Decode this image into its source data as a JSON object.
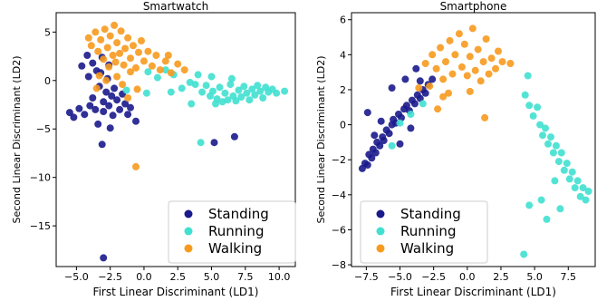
{
  "chart_data": [
    {
      "type": "scatter",
      "title": "Smartwatch",
      "xlabel": "First Linear Discriminant (LD1)",
      "ylabel": "Second Linear Discriminant (LD2)",
      "xlim": [
        -6.5,
        11.2
      ],
      "ylim": [
        -19.2,
        7.0
      ],
      "xticks": [
        -5.0,
        -2.5,
        0.0,
        2.5,
        5.0,
        7.5,
        10.0
      ],
      "xtick_labels": [
        "−5.0",
        "−2.5",
        "0.0",
        "2.5",
        "5.0",
        "7.5",
        "10.0"
      ],
      "yticks": [
        5,
        0,
        -5,
        -10,
        -15
      ],
      "ytick_labels": [
        "5",
        "0",
        "−5",
        "−10",
        "−15"
      ],
      "legend": "lower-right",
      "series": [
        {
          "name": "Standing",
          "color": "#1a1a8c",
          "points": [
            [
              -5.5,
              -3.3
            ],
            [
              -5.2,
              -3.8
            ],
            [
              -4.8,
              -2.9
            ],
            [
              -4.4,
              -3.5
            ],
            [
              -4.0,
              -2.6
            ],
            [
              -3.8,
              -1.8
            ],
            [
              -3.6,
              -3.0
            ],
            [
              -3.3,
              -0.6
            ],
            [
              -3.2,
              0.8
            ],
            [
              -3.0,
              -2.2
            ],
            [
              -3.0,
              -3.2
            ],
            [
              -2.8,
              -1.2
            ],
            [
              -2.7,
              0.2
            ],
            [
              -2.6,
              -2.6
            ],
            [
              -2.4,
              -1.6
            ],
            [
              -2.3,
              -3.6
            ],
            [
              -2.2,
              -0.8
            ],
            [
              -2.0,
              -2.0
            ],
            [
              -1.8,
              -3.0
            ],
            [
              -1.6,
              -1.4
            ],
            [
              -1.4,
              -2.4
            ],
            [
              -1.2,
              -3.5
            ],
            [
              -1.0,
              -2.8
            ],
            [
              -4.2,
              2.6
            ],
            [
              -3.8,
              1.8
            ],
            [
              -3.5,
              1.0
            ],
            [
              -4.6,
              1.5
            ],
            [
              -3.1,
              2.4
            ],
            [
              -2.6,
              1.6
            ],
            [
              -4.1,
              0.4
            ],
            [
              -3.4,
              -4.5
            ],
            [
              -3.1,
              -6.6
            ],
            [
              -3.0,
              -18.3
            ],
            [
              -2.5,
              -4.9
            ],
            [
              -0.6,
              -4.2
            ],
            [
              5.2,
              -6.4
            ],
            [
              6.7,
              -5.8
            ]
          ]
        },
        {
          "name": "Running",
          "color": "#40e0d0",
          "points": [
            [
              0.3,
              0.9
            ],
            [
              1.0,
              0.3
            ],
            [
              1.6,
              1.1
            ],
            [
              2.2,
              0.6
            ],
            [
              2.8,
              -0.8
            ],
            [
              3.4,
              -0.2
            ],
            [
              3.8,
              -0.4
            ],
            [
              4.0,
              0.6
            ],
            [
              4.3,
              -1.2
            ],
            [
              4.6,
              -0.5
            ],
            [
              4.9,
              -1.6
            ],
            [
              5.1,
              -1.1
            ],
            [
              5.4,
              -1.9
            ],
            [
              5.6,
              -0.7
            ],
            [
              5.8,
              -2.2
            ],
            [
              6.0,
              -1.3
            ],
            [
              6.2,
              -2.0
            ],
            [
              6.4,
              -0.4
            ],
            [
              6.6,
              -1.6
            ],
            [
              6.8,
              -2.1
            ],
            [
              7.0,
              -1.0
            ],
            [
              7.2,
              -1.7
            ],
            [
              7.4,
              -0.6
            ],
            [
              7.6,
              -1.3
            ],
            [
              7.8,
              -2.0
            ],
            [
              8.0,
              -0.9
            ],
            [
              8.2,
              -1.5
            ],
            [
              8.4,
              -0.5
            ],
            [
              8.6,
              -1.1
            ],
            [
              8.8,
              -1.8
            ],
            [
              9.0,
              -0.7
            ],
            [
              9.2,
              -1.2
            ],
            [
              9.5,
              -0.9
            ],
            [
              9.8,
              -1.3
            ],
            [
              10.4,
              -1.1
            ],
            [
              5.0,
              0.4
            ],
            [
              6.5,
              0.2
            ],
            [
              5.3,
              -2.4
            ],
            [
              3.5,
              -2.4
            ],
            [
              4.2,
              -6.4
            ],
            [
              0.2,
              -1.3
            ],
            [
              -1.3,
              -1.0
            ],
            [
              2.0,
              -1.2
            ]
          ]
        },
        {
          "name": "Walking",
          "color": "#f79a1e",
          "points": [
            [
              -4.1,
              4.4
            ],
            [
              -3.9,
              3.6
            ],
            [
              -3.6,
              5.0
            ],
            [
              -3.4,
              3.0
            ],
            [
              -3.2,
              4.2
            ],
            [
              -3.0,
              2.2
            ],
            [
              -2.9,
              5.3
            ],
            [
              -2.7,
              3.4
            ],
            [
              -2.6,
              1.4
            ],
            [
              -2.5,
              4.6
            ],
            [
              -2.3,
              2.6
            ],
            [
              -2.2,
              5.7
            ],
            [
              -2.1,
              1.9
            ],
            [
              -2.0,
              3.9
            ],
            [
              -1.8,
              2.8
            ],
            [
              -1.7,
              5.1
            ],
            [
              -1.5,
              1.6
            ],
            [
              -1.4,
              3.3
            ],
            [
              -1.2,
              4.4
            ],
            [
              -1.0,
              2.3
            ],
            [
              -0.8,
              3.6
            ],
            [
              -0.6,
              1.3
            ],
            [
              -0.4,
              2.9
            ],
            [
              -0.2,
              4.1
            ],
            [
              0.0,
              2.0
            ],
            [
              0.3,
              3.0
            ],
            [
              0.6,
              1.5
            ],
            [
              0.9,
              2.6
            ],
            [
              1.2,
              1.1
            ],
            [
              1.6,
              2.0
            ],
            [
              2.0,
              0.8
            ],
            [
              2.5,
              1.7
            ],
            [
              3.0,
              1.1
            ],
            [
              -3.3,
              0.5
            ],
            [
              -2.8,
              0.0
            ],
            [
              -2.0,
              0.4
            ],
            [
              -1.6,
              -0.4
            ],
            [
              -1.0,
              0.9
            ],
            [
              -0.5,
              -0.9
            ],
            [
              -1.2,
              -1.8
            ],
            [
              -0.6,
              -8.9
            ],
            [
              1.8,
              2.6
            ],
            [
              -3.5,
              -0.8
            ]
          ]
        }
      ]
    },
    {
      "type": "scatter",
      "title": "Smartphone",
      "xlabel": "First Linear Discriminant (LD1)",
      "ylabel": "Second Linear Discriminant (LD2)",
      "xlim": [
        -8.6,
        9.5
      ],
      "ylim": [
        -8.1,
        6.4
      ],
      "xticks": [
        -7.5,
        -5.0,
        -2.5,
        0.0,
        2.5,
        5.0,
        7.5
      ],
      "xtick_labels": [
        "−7.5",
        "−5.0",
        "−2.5",
        "0.0",
        "2.5",
        "5.0",
        "7.5"
      ],
      "yticks": [
        6,
        4,
        2,
        0,
        -2,
        -4,
        -6,
        -8
      ],
      "ytick_labels": [
        "6",
        "4",
        "2",
        "0",
        "−2",
        "−4",
        "−6",
        "−8"
      ],
      "legend": "lower-left",
      "series": [
        {
          "name": "Standing",
          "color": "#1a1a8c",
          "points": [
            [
              -7.8,
              -2.5
            ],
            [
              -7.6,
              -2.2
            ],
            [
              -7.4,
              -2.3
            ],
            [
              -7.3,
              -1.7
            ],
            [
              -7.1,
              -1.9
            ],
            [
              -7.0,
              -1.4
            ],
            [
              -6.8,
              -1.6
            ],
            [
              -6.7,
              -1.0
            ],
            [
              -6.5,
              -1.2
            ],
            [
              -6.3,
              -0.7
            ],
            [
              -6.2,
              -0.9
            ],
            [
              -6.0,
              -0.3
            ],
            [
              -5.8,
              -0.5
            ],
            [
              -5.6,
              0.0
            ],
            [
              -5.5,
              0.3
            ],
            [
              -5.3,
              0.1
            ],
            [
              -5.1,
              0.6
            ],
            [
              -4.9,
              0.4
            ],
            [
              -4.7,
              0.9
            ],
            [
              -4.5,
              1.1
            ],
            [
              -4.3,
              0.8
            ],
            [
              -4.1,
              1.4
            ],
            [
              -3.9,
              1.2
            ],
            [
              -3.7,
              1.7
            ],
            [
              -3.5,
              1.5
            ],
            [
              -3.3,
              2.0
            ],
            [
              -3.1,
              1.8
            ],
            [
              -2.9,
              2.3
            ],
            [
              -5.6,
              2.1
            ],
            [
              -4.6,
              2.6
            ],
            [
              -3.8,
              3.2
            ],
            [
              -3.5,
              2.5
            ],
            [
              -2.6,
              2.6
            ],
            [
              -7.4,
              0.7
            ],
            [
              -6.4,
              0.2
            ],
            [
              -6.9,
              -0.6
            ],
            [
              -5.0,
              -1.1
            ],
            [
              -4.2,
              -0.2
            ]
          ]
        },
        {
          "name": "Running",
          "color": "#40e0d0",
          "points": [
            [
              4.3,
              1.7
            ],
            [
              4.6,
              1.1
            ],
            [
              4.9,
              0.5
            ],
            [
              5.2,
              1.0
            ],
            [
              5.4,
              0.0
            ],
            [
              5.6,
              -0.6
            ],
            [
              5.8,
              -0.2
            ],
            [
              6.0,
              -1.1
            ],
            [
              6.2,
              -0.7
            ],
            [
              6.4,
              -1.6
            ],
            [
              6.6,
              -1.2
            ],
            [
              6.8,
              -2.1
            ],
            [
              7.0,
              -1.6
            ],
            [
              7.2,
              -2.6
            ],
            [
              7.4,
              -2.2
            ],
            [
              7.6,
              -3.1
            ],
            [
              7.8,
              -2.7
            ],
            [
              8.0,
              -3.6
            ],
            [
              8.2,
              -3.2
            ],
            [
              8.4,
              -4.1
            ],
            [
              8.6,
              -3.6
            ],
            [
              8.8,
              -4.3
            ],
            [
              9.0,
              -3.8
            ],
            [
              6.5,
              -3.2
            ],
            [
              5.5,
              -4.3
            ],
            [
              5.9,
              -5.4
            ],
            [
              4.6,
              -4.6
            ],
            [
              6.9,
              -4.8
            ],
            [
              4.2,
              -7.4
            ],
            [
              -4.2,
              0.6
            ],
            [
              -5.0,
              0.1
            ],
            [
              -5.6,
              -1.2
            ],
            [
              -3.3,
              1.2
            ],
            [
              4.5,
              2.8
            ]
          ]
        },
        {
          "name": "Walking",
          "color": "#f79a1e",
          "points": [
            [
              -2.6,
              4.0
            ],
            [
              -2.3,
              3.2
            ],
            [
              -2.0,
              4.4
            ],
            [
              -1.8,
              2.6
            ],
            [
              -1.6,
              3.6
            ],
            [
              -1.3,
              4.8
            ],
            [
              -1.1,
              2.9
            ],
            [
              -0.9,
              4.0
            ],
            [
              -0.6,
              5.2
            ],
            [
              -0.4,
              3.3
            ],
            [
              -0.2,
              4.6
            ],
            [
              0.0,
              2.8
            ],
            [
              0.2,
              3.9
            ],
            [
              0.4,
              5.5
            ],
            [
              0.6,
              3.1
            ],
            [
              0.8,
              4.3
            ],
            [
              1.0,
              2.5
            ],
            [
              1.2,
              3.6
            ],
            [
              1.4,
              4.9
            ],
            [
              1.6,
              2.9
            ],
            [
              1.8,
              3.8
            ],
            [
              2.1,
              3.2
            ],
            [
              2.3,
              4.2
            ],
            [
              2.6,
              3.6
            ],
            [
              -3.1,
              3.5
            ],
            [
              -2.8,
              2.2
            ],
            [
              -1.4,
              1.8
            ],
            [
              -2.2,
              0.9
            ],
            [
              -1.8,
              1.6
            ],
            [
              1.3,
              0.4
            ],
            [
              3.2,
              3.5
            ],
            [
              0.2,
              1.9
            ],
            [
              -3.6,
              2.1
            ]
          ]
        }
      ]
    }
  ]
}
